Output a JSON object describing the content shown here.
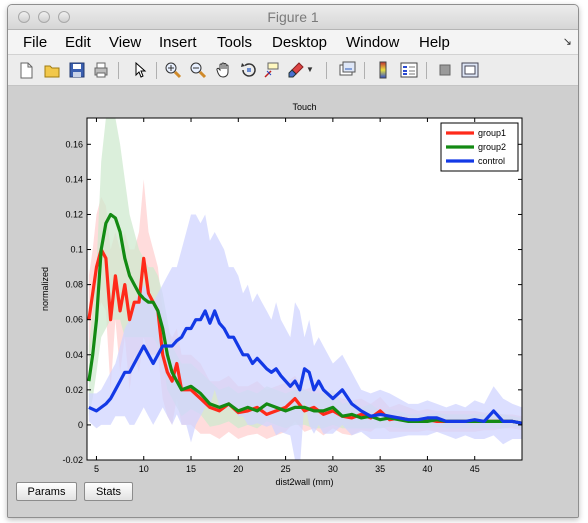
{
  "window": {
    "title": "Figure 1"
  },
  "menu": [
    "File",
    "Edit",
    "View",
    "Insert",
    "Tools",
    "Desktop",
    "Window",
    "Help"
  ],
  "menu_overflow_icon": "corner-arrow-icon",
  "toolbar": [
    "new-figure-icon",
    "open-file-icon",
    "save-icon",
    "print-icon",
    "pointer-icon",
    "zoom-in-icon",
    "zoom-out-icon",
    "pan-hand-icon",
    "rotate-3d-icon",
    "data-cursor-icon",
    "brush-icon",
    "brush-dropdown-icon",
    "link-plot-icon",
    "colorbar-icon",
    "legend-icon",
    "hide-plot-tools-icon",
    "show-plot-tools-icon"
  ],
  "buttons": {
    "params": "Params",
    "stats": "Stats"
  },
  "chart_data": {
    "type": "line",
    "title": "Touch",
    "xlabel": "dist2wall (mm)",
    "ylabel": "normalized",
    "xlim": [
      4,
      50
    ],
    "ylim": [
      -0.02,
      0.175
    ],
    "xticks": [
      5,
      10,
      15,
      20,
      25,
      30,
      35,
      40,
      45
    ],
    "yticks": [
      -0.02,
      0,
      0.02,
      0.04,
      0.06,
      0.08,
      0.1,
      0.12,
      0.14,
      0.16
    ],
    "ytick_labels": [
      "-0.02",
      "0",
      "0.02",
      "0.04",
      "0.06",
      "0.08",
      "0.1",
      "0.12",
      "0.14",
      "0.16"
    ],
    "grid": false,
    "legend_position": "top-right",
    "series": [
      {
        "name": "group1",
        "color": "#ff2a1a",
        "band_color": "#ffd0d0",
        "x": [
          4.2,
          4.6,
          5,
          5.5,
          6,
          6.5,
          7,
          7.5,
          8,
          8.5,
          9,
          9.5,
          10,
          10.5,
          11,
          11.5,
          12,
          12.5,
          13,
          13.5,
          14,
          15,
          16,
          17,
          18,
          19,
          20,
          21,
          22,
          23,
          24,
          25,
          26,
          27,
          28,
          29,
          30,
          31,
          32,
          33,
          34,
          35,
          36,
          37,
          38,
          39,
          40,
          41,
          42,
          43,
          44,
          45,
          46,
          47,
          48,
          49,
          50
        ],
        "y": [
          0.06,
          0.075,
          0.09,
          0.1,
          0.095,
          0.06,
          0.085,
          0.065,
          0.08,
          0.06,
          0.07,
          0.07,
          0.095,
          0.075,
          0.07,
          0.065,
          0.04,
          0.03,
          0.025,
          0.035,
          0.02,
          0.02,
          0.015,
          0.01,
          0.008,
          0.012,
          0.007,
          0.008,
          0.01,
          0.006,
          0.008,
          0.01,
          0.015,
          0.008,
          0.01,
          0.006,
          0.008,
          0.005,
          0.004,
          0.006,
          0.004,
          0.008,
          0.003,
          0.004,
          0.003,
          0.002,
          0.003,
          0.002,
          0.002,
          0.002,
          0.002,
          0.002,
          0.002,
          0.002,
          0.002,
          0.002,
          0.001
        ],
        "upper": [
          0.085,
          0.1,
          0.12,
          0.13,
          0.125,
          0.1,
          0.11,
          0.1,
          0.11,
          0.1,
          0.1,
          0.11,
          0.14,
          0.11,
          0.1,
          0.09,
          0.065,
          0.055,
          0.05,
          0.055,
          0.04,
          0.04,
          0.035,
          0.025,
          0.025,
          0.028,
          0.022,
          0.022,
          0.025,
          0.02,
          0.022,
          0.024,
          0.028,
          0.02,
          0.022,
          0.018,
          0.018,
          0.015,
          0.014,
          0.015,
          0.012,
          0.016,
          0.01,
          0.012,
          0.01,
          0.008,
          0.009,
          0.008,
          0.008,
          0.008,
          0.008,
          0.008,
          0.007,
          0.007,
          0.006,
          0.006,
          0.005
        ],
        "lower": [
          0.035,
          0.05,
          0.06,
          0.07,
          0.065,
          0.02,
          0.06,
          0.03,
          0.05,
          0.02,
          0.04,
          0.03,
          0.05,
          0.04,
          0.04,
          0.04,
          0.015,
          0.005,
          0.0,
          0.015,
          0.0,
          0.0,
          -0.005,
          -0.005,
          -0.008,
          -0.004,
          -0.008,
          -0.006,
          -0.005,
          -0.008,
          -0.006,
          -0.004,
          0.002,
          -0.004,
          -0.002,
          -0.006,
          -0.002,
          -0.005,
          -0.006,
          -0.003,
          -0.004,
          0.0,
          -0.004,
          -0.004,
          -0.004,
          -0.004,
          -0.003,
          -0.004,
          -0.004,
          -0.004,
          -0.004,
          -0.004,
          -0.003,
          -0.003,
          -0.002,
          -0.002,
          -0.003
        ]
      },
      {
        "name": "group2",
        "color": "#138a13",
        "band_color": "#cfe9cf",
        "x": [
          4.2,
          4.6,
          5,
          5.5,
          6,
          6.5,
          7,
          7.5,
          8,
          8.5,
          9,
          9.5,
          10,
          10.5,
          11,
          11.5,
          12,
          12.5,
          13,
          13.5,
          14,
          15,
          16,
          17,
          18,
          19,
          20,
          21,
          22,
          23,
          24,
          25,
          26,
          27,
          28,
          29,
          30,
          31,
          32,
          33,
          34,
          35,
          36,
          37,
          38,
          39,
          40,
          41,
          42,
          43,
          44,
          45,
          46,
          47,
          48,
          49,
          50
        ],
        "y": [
          0.025,
          0.04,
          0.06,
          0.1,
          0.115,
          0.12,
          0.118,
          0.11,
          0.095,
          0.085,
          0.08,
          0.075,
          0.072,
          0.07,
          0.07,
          0.065,
          0.055,
          0.04,
          0.03,
          0.025,
          0.02,
          0.022,
          0.018,
          0.012,
          0.01,
          0.012,
          0.008,
          0.01,
          0.008,
          0.012,
          0.01,
          0.008,
          0.01,
          0.01,
          0.008,
          0.008,
          0.01,
          0.005,
          0.006,
          0.004,
          0.005,
          0.003,
          0.004,
          0.003,
          0.002,
          0.002,
          0.002,
          0.003,
          0.002,
          0.002,
          0.002,
          0.002,
          0.002,
          0.002,
          0.002,
          0.002,
          0.001
        ],
        "upper": [
          0.045,
          0.065,
          0.09,
          0.15,
          0.175,
          0.18,
          0.175,
          0.16,
          0.14,
          0.12,
          0.11,
          0.1,
          0.095,
          0.09,
          0.09,
          0.085,
          0.075,
          0.06,
          0.045,
          0.04,
          0.035,
          0.035,
          0.03,
          0.025,
          0.02,
          0.022,
          0.018,
          0.02,
          0.018,
          0.022,
          0.02,
          0.018,
          0.02,
          0.02,
          0.018,
          0.018,
          0.02,
          0.012,
          0.014,
          0.01,
          0.012,
          0.008,
          0.009,
          0.008,
          0.006,
          0.006,
          0.006,
          0.007,
          0.006,
          0.006,
          0.006,
          0.006,
          0.006,
          0.006,
          0.006,
          0.005,
          0.004
        ],
        "lower": [
          0.005,
          0.015,
          0.03,
          0.05,
          0.055,
          0.06,
          0.06,
          0.06,
          0.05,
          0.05,
          0.05,
          0.05,
          0.05,
          0.05,
          0.05,
          0.045,
          0.035,
          0.02,
          0.015,
          0.01,
          0.005,
          0.009,
          0.006,
          -0.001,
          0.0,
          0.002,
          -0.002,
          0.0,
          -0.002,
          0.002,
          0.0,
          -0.002,
          0.0,
          0.0,
          -0.002,
          -0.002,
          0.0,
          -0.002,
          -0.002,
          -0.002,
          -0.002,
          -0.002,
          -0.001,
          -0.002,
          -0.002,
          -0.002,
          -0.002,
          -0.001,
          -0.002,
          -0.002,
          -0.002,
          -0.002,
          -0.002,
          -0.002,
          -0.002,
          -0.001,
          -0.002
        ]
      },
      {
        "name": "control",
        "color": "#1339e6",
        "band_color": "#d0d4ff",
        "x": [
          4.2,
          5,
          5.5,
          6,
          6.5,
          7,
          7.5,
          8,
          8.5,
          9,
          9.5,
          10,
          10.5,
          11,
          11.5,
          12,
          12.5,
          13,
          13.5,
          14,
          14.5,
          15,
          15.5,
          16,
          16.5,
          17,
          17.5,
          18,
          18.5,
          19,
          19.5,
          20,
          20.5,
          21,
          21.5,
          22,
          22.5,
          23,
          23.5,
          24,
          24.5,
          25,
          25.5,
          26,
          26.5,
          27,
          27.5,
          28,
          28.5,
          29,
          30,
          31,
          32,
          33,
          34,
          35,
          36,
          37,
          38,
          39,
          40,
          41,
          42,
          43,
          44,
          45,
          46,
          47,
          48,
          49,
          50
        ],
        "y": [
          0.01,
          0.008,
          0.01,
          0.012,
          0.015,
          0.02,
          0.025,
          0.03,
          0.03,
          0.035,
          0.04,
          0.045,
          0.04,
          0.035,
          0.04,
          0.045,
          0.045,
          0.045,
          0.048,
          0.05,
          0.055,
          0.055,
          0.06,
          0.06,
          0.065,
          0.058,
          0.065,
          0.058,
          0.055,
          0.05,
          0.05,
          0.045,
          0.04,
          0.04,
          0.035,
          0.038,
          0.035,
          0.032,
          0.03,
          0.032,
          0.028,
          0.025,
          0.022,
          0.025,
          0.02,
          0.032,
          0.03,
          0.02,
          0.025,
          0.02,
          0.015,
          0.02,
          0.012,
          0.008,
          0.005,
          0.006,
          0.005,
          0.004,
          0.003,
          0.003,
          0.004,
          0.004,
          0.002,
          0.002,
          0.002,
          0.003,
          0.002,
          0.008,
          0.002,
          0.002,
          0.001
        ],
        "upper": [
          0.018,
          0.018,
          0.02,
          0.025,
          0.03,
          0.035,
          0.045,
          0.055,
          0.06,
          0.07,
          0.075,
          0.08,
          0.075,
          0.07,
          0.075,
          0.08,
          0.085,
          0.09,
          0.09,
          0.1,
          0.11,
          0.12,
          0.12,
          0.115,
          0.12,
          0.105,
          0.11,
          0.105,
          0.1,
          0.09,
          0.09,
          0.085,
          0.075,
          0.08,
          0.07,
          0.075,
          0.07,
          0.065,
          0.06,
          0.07,
          0.06,
          0.055,
          0.05,
          0.07,
          0.065,
          0.05,
          0.06,
          0.045,
          0.05,
          0.045,
          0.035,
          0.04,
          0.03,
          0.02,
          0.018,
          0.02,
          0.018,
          0.015,
          0.012,
          0.012,
          0.014,
          0.012,
          0.01,
          0.012,
          0.01,
          0.014,
          0.012,
          0.022,
          0.015,
          0.012,
          0.01
        ],
        "lower": [
          0.002,
          -0.002,
          0.0,
          0.0,
          0.0,
          0.005,
          0.005,
          0.005,
          0.0,
          0.0,
          0.005,
          0.01,
          0.005,
          0.0,
          0.005,
          0.01,
          0.005,
          0.0,
          0.006,
          0.0,
          0.0,
          -0.01,
          0.0,
          0.005,
          0.01,
          0.011,
          0.02,
          0.011,
          0.01,
          0.01,
          0.01,
          0.005,
          0.005,
          0.0,
          0.0,
          0.001,
          0.0,
          -0.001,
          0.0,
          -0.006,
          -0.004,
          -0.005,
          -0.006,
          -0.02,
          -0.025,
          0.014,
          0.0,
          -0.005,
          0.0,
          -0.005,
          -0.005,
          0.0,
          -0.006,
          -0.004,
          -0.008,
          -0.008,
          -0.008,
          -0.007,
          -0.006,
          -0.006,
          -0.006,
          -0.004,
          -0.006,
          -0.008,
          -0.006,
          -0.008,
          -0.008,
          -0.006,
          -0.011,
          -0.008,
          -0.008
        ]
      }
    ]
  }
}
